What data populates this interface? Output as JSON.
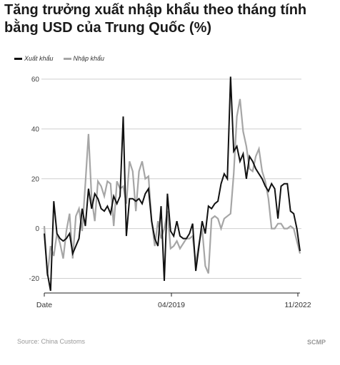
{
  "title": "Tăng trưởng xuất nhập khẩu theo tháng tính bằng USD của Trung Quốc (%)",
  "source": "Source: China Customs",
  "brand": "SCMP",
  "colors": {
    "export": "#111111",
    "import": "#a6a6a6",
    "grid": "#cfcfcf"
  },
  "chart_data": {
    "type": "line",
    "title": "Tăng trưởng xuất nhập khẩu theo tháng tính bằng USD của Trung Quốc (%)",
    "xlabel": "",
    "ylabel": "",
    "ylim": [
      -25,
      62
    ],
    "yticks": [
      -20,
      0,
      20,
      40,
      60
    ],
    "xtick_labels": [
      {
        "label": "Date",
        "index": 0
      },
      {
        "label": "04/2019",
        "index": 51
      },
      {
        "label": "11/2022",
        "index": 94
      }
    ],
    "grid": true,
    "legend": "top-left",
    "series": [
      {
        "name": "Xuất khẩu",
        "values": [
          -2,
          -18,
          -25,
          11,
          -2,
          -4,
          -5,
          -4,
          -2,
          -10,
          -7,
          -4,
          8,
          1,
          16,
          8,
          14,
          12,
          8,
          7,
          9,
          6,
          13,
          10,
          13,
          45,
          -3,
          12,
          12,
          11,
          12,
          10,
          14,
          16,
          3,
          -4,
          -7,
          9,
          -21,
          14,
          -1,
          -3,
          3,
          -3,
          -4,
          -4,
          -2,
          2,
          -17,
          -7,
          3,
          -2,
          9,
          8,
          10,
          11,
          18,
          22,
          20,
          61,
          31,
          33,
          27,
          30,
          20,
          29,
          27,
          24,
          22,
          20,
          17,
          15,
          18,
          16,
          4,
          17,
          18,
          18,
          7,
          6,
          0,
          -9
        ],
        "x": [
          0,
          1,
          2,
          3,
          4,
          5,
          6,
          7,
          8,
          9,
          10,
          11,
          12,
          13,
          14,
          15,
          16,
          17,
          18,
          19,
          20,
          21,
          22,
          23,
          24,
          25,
          26,
          27,
          28,
          29,
          30,
          31,
          32,
          33,
          34,
          35,
          36,
          37,
          38,
          39,
          40,
          41,
          42,
          43,
          44,
          45,
          46,
          47,
          48,
          49,
          50,
          51,
          52,
          53,
          54,
          55,
          56,
          57,
          58,
          59,
          60,
          61,
          62,
          63,
          64,
          65,
          66,
          67,
          68,
          69,
          70,
          71,
          72,
          73,
          74,
          75,
          76,
          77,
          78,
          79,
          80,
          81
        ]
      },
      {
        "name": "Nhập khẩu",
        "values": [
          1,
          -19,
          -7,
          -11,
          -2,
          -6,
          -12,
          -1,
          6,
          -12,
          5,
          8,
          -1,
          18,
          38,
          12,
          3,
          19,
          17,
          13,
          19,
          18,
          1,
          19,
          16,
          17,
          10,
          27,
          23,
          7,
          23,
          27,
          20,
          21,
          3,
          -7,
          3,
          -4,
          0,
          7,
          -8,
          -7,
          -5,
          -8,
          -6,
          -4,
          -4,
          -3,
          -14,
          -6,
          0,
          -15,
          -18,
          4,
          5,
          4,
          0,
          4,
          5,
          6,
          22,
          45,
          52,
          39,
          33,
          24,
          23,
          29,
          32,
          23,
          19,
          12,
          0,
          0,
          2,
          2,
          0,
          0,
          1,
          0,
          -10
        ],
        "x": [
          0,
          1,
          2,
          3,
          4,
          5,
          6,
          7,
          8,
          9,
          10,
          11,
          12,
          13,
          14,
          15,
          16,
          17,
          18,
          19,
          20,
          21,
          22,
          23,
          24,
          25,
          26,
          27,
          28,
          29,
          30,
          31,
          32,
          33,
          34,
          35,
          36,
          37,
          38,
          39,
          40,
          41,
          42,
          43,
          44,
          45,
          46,
          47,
          48,
          49,
          50,
          51,
          52,
          53,
          54,
          55,
          56,
          57,
          58,
          59,
          60,
          61,
          62,
          63,
          64,
          65,
          66,
          67,
          68,
          69,
          70,
          71,
          72,
          73,
          74,
          75,
          76,
          77,
          78,
          79,
          81
        ]
      }
    ]
  }
}
